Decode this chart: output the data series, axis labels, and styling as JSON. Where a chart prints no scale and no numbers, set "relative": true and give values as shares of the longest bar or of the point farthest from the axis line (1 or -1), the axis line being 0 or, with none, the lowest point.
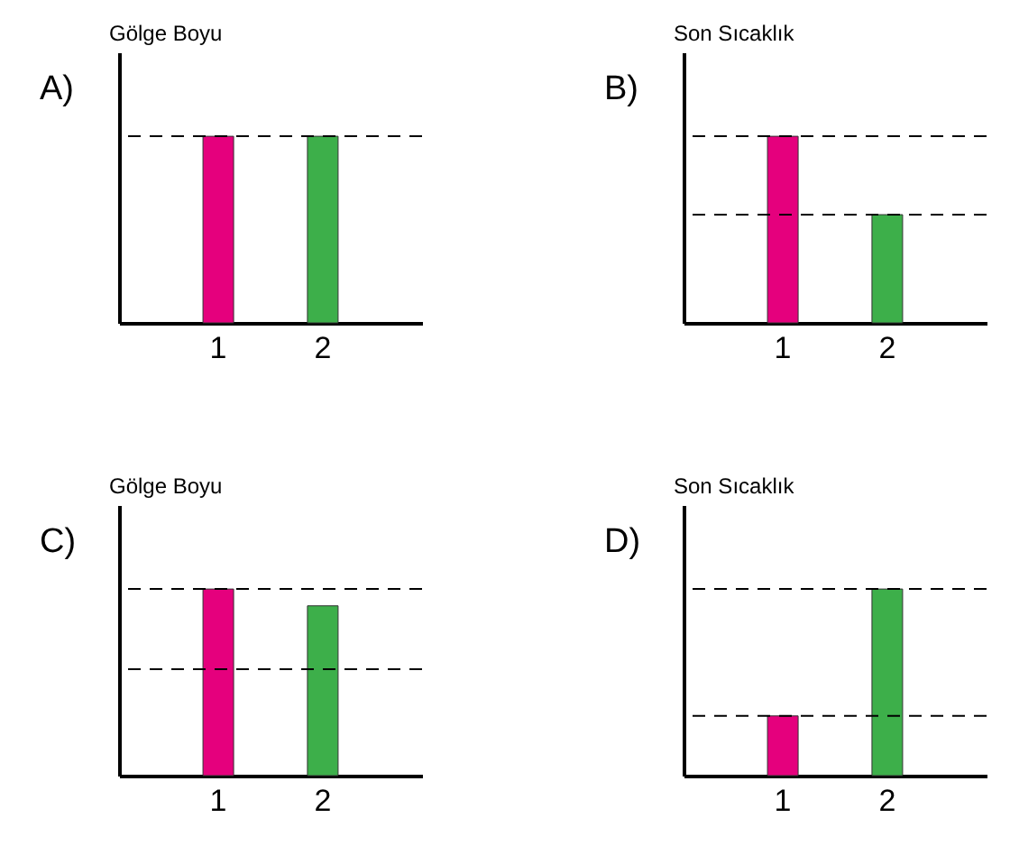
{
  "chart_data": [
    {
      "type": "bar",
      "ylabel": "Gölge Boyu",
      "annotations": [
        "A)"
      ],
      "categories": [
        "1",
        "2"
      ],
      "values": [
        1,
        1
      ],
      "colors": [
        "#e5007d",
        "#3daf4a"
      ],
      "relative": true,
      "ref_lines": [
        {
          "axis": "y",
          "value": 1
        }
      ]
    },
    {
      "type": "bar",
      "ylabel": "Son Sıcaklık",
      "annotations": [
        "B)"
      ],
      "categories": [
        "1",
        "2"
      ],
      "values": [
        1,
        0.58
      ],
      "colors": [
        "#e5007d",
        "#3daf4a"
      ],
      "relative": true,
      "ref_lines": [
        {
          "axis": "y",
          "value": 1
        },
        {
          "axis": "y",
          "value": 0.58
        }
      ]
    },
    {
      "type": "bar",
      "ylabel": "Gölge Boyu",
      "annotations": [
        "C)"
      ],
      "categories": [
        "1",
        "2"
      ],
      "values": [
        1,
        0.91
      ],
      "colors": [
        "#e5007d",
        "#3daf4a"
      ],
      "relative": true,
      "ref_lines": [
        {
          "axis": "y",
          "value": 1
        },
        {
          "axis": "y",
          "value": 0.57
        }
      ]
    },
    {
      "type": "bar",
      "ylabel": "Son Sıcaklık",
      "annotations": [
        "D)"
      ],
      "categories": [
        "1",
        "2"
      ],
      "values": [
        0.32,
        1
      ],
      "colors": [
        "#e5007d",
        "#3daf4a"
      ],
      "relative": true,
      "ref_lines": [
        {
          "axis": "y",
          "value": 1
        },
        {
          "axis": "y",
          "value": 0.32
        }
      ]
    }
  ]
}
